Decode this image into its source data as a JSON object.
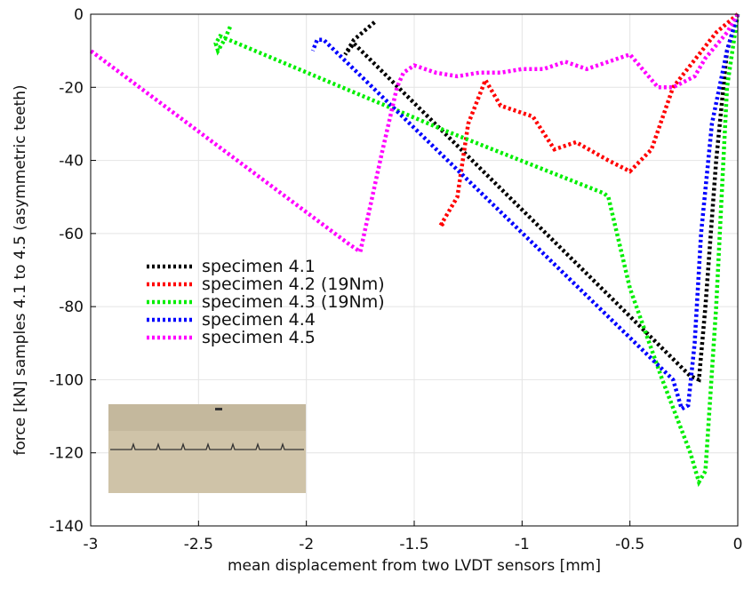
{
  "chart_data": {
    "type": "line",
    "xlabel": "mean displacement from two LVDT sensors [mm]",
    "ylabel": "force [kN] samples 4.1 to 4.5 (asymmetric teeth)",
    "xlim": [
      -3,
      0
    ],
    "ylim": [
      -140,
      0
    ],
    "xticks": [
      -3,
      -2.5,
      -2,
      -1.5,
      -1,
      -0.5,
      0
    ],
    "yticks": [
      -140,
      -120,
      -100,
      -80,
      -60,
      -40,
      -20,
      0
    ],
    "grid": true,
    "legend": "left",
    "series": [
      {
        "name": "specimen 4.1",
        "color": "#000000",
        "x": [
          0,
          -0.05,
          -0.1,
          -0.15,
          -0.18,
          -0.22,
          -1.78,
          -1.82,
          -1.78,
          -1.68
        ],
        "values": [
          0,
          -10,
          -40,
          -80,
          -100,
          -99,
          -8,
          -11,
          -7,
          -2
        ]
      },
      {
        "name": "specimen 4.2 (19Nm)",
        "color": "#ff0000",
        "x": [
          0,
          -0.1,
          -0.3,
          -0.4,
          -0.5,
          -0.6,
          -0.75,
          -0.85,
          -0.95,
          -1.1,
          -1.17,
          -1.25,
          -1.3,
          -1.38,
          -1.36
        ],
        "values": [
          0,
          -5,
          -20,
          -37,
          -43,
          -40,
          -35,
          -37,
          -28,
          -25,
          -18,
          -30,
          -50,
          -58,
          -57
        ]
      },
      {
        "name": "specimen 4.3 (19Nm)",
        "color": "#00ee00",
        "x": [
          0,
          -0.05,
          -0.1,
          -0.15,
          -0.18,
          -0.22,
          -0.35,
          -0.5,
          -0.6,
          -0.62,
          -1.35,
          -2.4,
          -2.42,
          -2.41,
          -2.38,
          -2.35
        ],
        "values": [
          0,
          -20,
          -80,
          -125,
          -128,
          -120,
          -100,
          -75,
          -50,
          -49,
          -32,
          -6,
          -8,
          -10,
          -7,
          -3
        ]
      },
      {
        "name": "specimen 4.4",
        "color": "#0000ff",
        "x": [
          0,
          -0.05,
          -0.12,
          -0.17,
          -0.2,
          -0.23,
          -0.26,
          -0.3,
          -1.92,
          -1.95,
          -1.97
        ],
        "values": [
          0,
          -10,
          -30,
          -60,
          -90,
          -107,
          -108,
          -100,
          -7,
          -7,
          -10
        ]
      },
      {
        "name": "specimen 4.5",
        "color": "#ff00ff",
        "x": [
          0,
          -0.05,
          -0.15,
          -0.2,
          -0.3,
          -0.37,
          -0.5,
          -0.6,
          -0.7,
          -0.8,
          -0.9,
          -1.0,
          -1.1,
          -1.2,
          -1.3,
          -1.4,
          -1.5,
          -1.55,
          -1.58,
          -1.65,
          -1.75,
          -1.8,
          -3
        ],
        "values": [
          0,
          -5,
          -12,
          -17,
          -20,
          -20,
          -11,
          -13,
          -15,
          -13,
          -15,
          -15,
          -16,
          -16,
          -17,
          -16,
          -14,
          -16,
          -20,
          -38,
          -65,
          -63,
          -10
        ]
      }
    ]
  }
}
